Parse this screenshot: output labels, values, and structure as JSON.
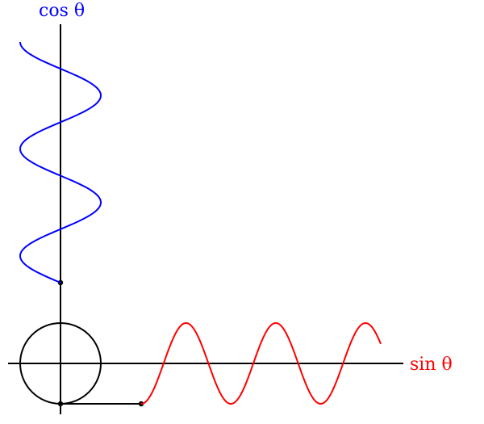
{
  "labels": {
    "x_axis": "sin θ",
    "y_axis": "cos θ"
  },
  "colors": {
    "axes": "#000000",
    "circle": "#000000",
    "cos_curve": "#0000ff",
    "sin_curve": "#ff0000"
  },
  "curves": {
    "cos_curve": {
      "function": "cos",
      "periods": 2.25,
      "amplitude": 1
    },
    "sin_curve": {
      "function": "sin",
      "periods": 2.67,
      "amplitude": 1
    }
  },
  "circle": {
    "radius": 1
  }
}
